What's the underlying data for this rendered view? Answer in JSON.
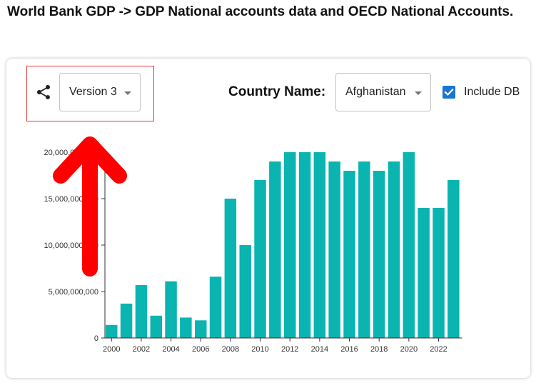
{
  "header": {
    "title": "World Bank GDP -> GDP National accounts data and OECD National Accounts."
  },
  "toolbar": {
    "share_icon": "share-icon",
    "version_value": "Version 3",
    "country_label": "Country Name:",
    "country_value": "Afghanistan",
    "include_db_label": "Include DB",
    "include_db_checked": true,
    "accent_color": "#1976d2"
  },
  "annotation": {
    "highlight_color": "#e53935",
    "arrow_color": "#ff0000"
  },
  "chart_data": {
    "type": "bar",
    "color": "#0ab4b0",
    "x_tick_labels": [
      "2000",
      "2002",
      "2004",
      "2006",
      "2008",
      "2010",
      "2012",
      "2014",
      "2016",
      "2018",
      "2020",
      "2022"
    ],
    "y_tick_labels": [
      "0",
      "5,000,000,000",
      "10,000,000,000",
      "15,000,000,000",
      "20,000,000,000"
    ],
    "ylim": [
      0,
      20000000000
    ],
    "categories": [
      "2000",
      "2001",
      "2002",
      "2003",
      "2004",
      "2005",
      "2006",
      "2007",
      "2008",
      "2009",
      "2010",
      "2011",
      "2012",
      "2013",
      "2014",
      "2015",
      "2016",
      "2017",
      "2018",
      "2019",
      "2020",
      "2021",
      "2022",
      "2023"
    ],
    "values": [
      1400000000,
      3700000000,
      5700000000,
      2400000000,
      6100000000,
      2200000000,
      1900000000,
      6600000000,
      15000000000,
      10000000000,
      17000000000,
      19000000000,
      20000000000,
      20000000000,
      20000000000,
      19000000000,
      18000000000,
      19000000000,
      18000000000,
      19000000000,
      20000000000,
      14000000000,
      14000000000,
      17000000000
    ]
  }
}
